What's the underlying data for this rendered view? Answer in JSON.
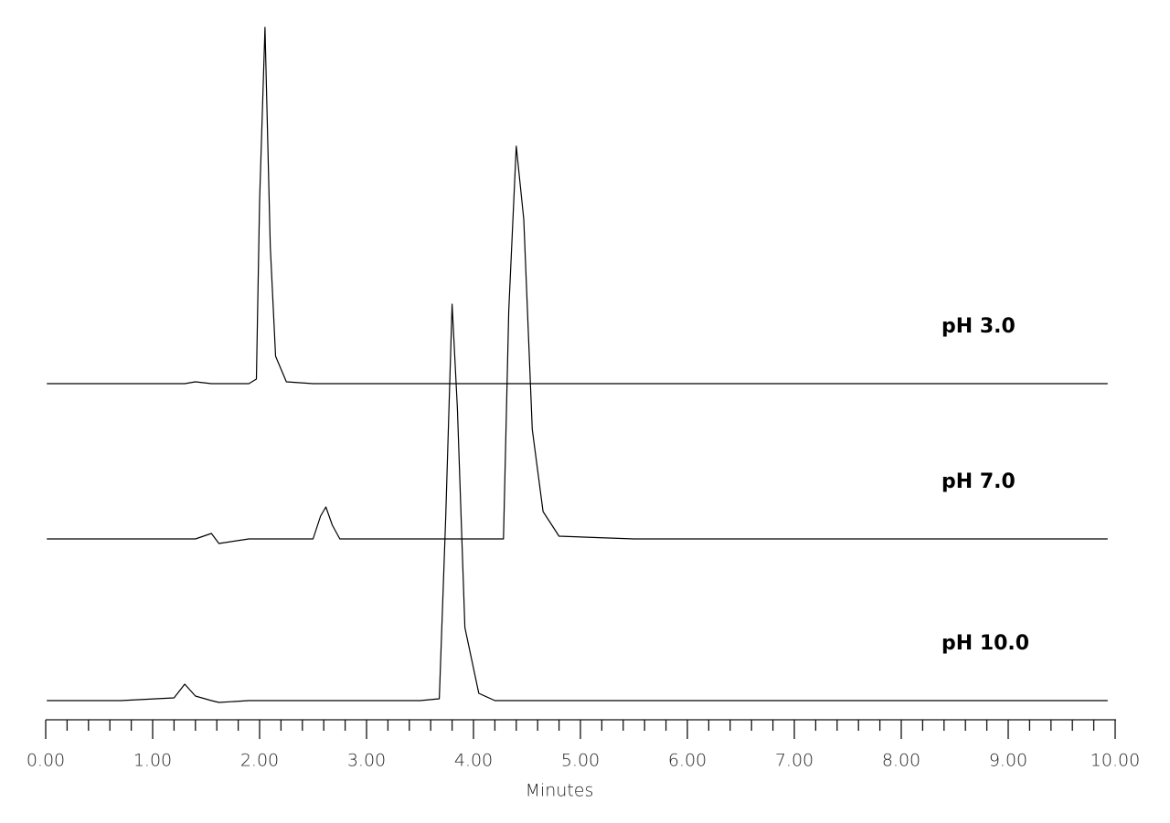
{
  "chart_data": {
    "type": "line",
    "xlabel": "Minutes",
    "x": [
      0.01,
      0.7,
      1.2,
      1.3,
      1.4,
      1.55,
      1.62,
      1.9,
      1.97,
      2.0,
      2.05,
      2.1,
      2.15,
      2.25,
      2.5,
      2.57,
      2.62,
      2.68,
      2.75,
      3.5,
      3.68,
      3.74,
      3.8,
      3.85,
      3.92,
      4.05,
      4.2,
      4.28,
      4.33,
      4.4,
      4.47,
      4.55,
      4.65,
      4.8,
      5.5,
      9.93
    ],
    "series": [
      {
        "name": "pH 3.0",
        "color": "#000000",
        "values": [
          0,
          0,
          0,
          0,
          2,
          0,
          0,
          0,
          5,
          200,
          390,
          150,
          30,
          2,
          0,
          0,
          0,
          0,
          0,
          0,
          0,
          0,
          0,
          0,
          0,
          0,
          0,
          0,
          0,
          0,
          0,
          0,
          0,
          0,
          0,
          0
        ]
      },
      {
        "name": "pH 7.0",
        "color": "#000000",
        "values": [
          0,
          0,
          0,
          0,
          0,
          6,
          -5,
          0,
          0,
          0,
          0,
          0,
          0,
          0,
          0,
          25,
          35,
          15,
          0,
          0,
          0,
          0,
          0,
          0,
          0,
          0,
          0,
          0,
          250,
          430,
          350,
          120,
          30,
          3,
          0,
          0
        ]
      },
      {
        "name": "pH 10.0",
        "color": "#000000",
        "values": [
          0,
          0,
          3,
          18,
          5,
          0,
          -2,
          0,
          0,
          0,
          0,
          0,
          0,
          0,
          0,
          0,
          0,
          0,
          0,
          0,
          2,
          200,
          434,
          320,
          80,
          8,
          0,
          0,
          0,
          0,
          0,
          0,
          0,
          0,
          0,
          0
        ]
      }
    ],
    "xlim": [
      0,
      10
    ],
    "ylim": [
      0,
      450
    ],
    "xticks": [
      {
        "value": 0,
        "label": "0.00"
      },
      {
        "value": 1,
        "label": "1.00"
      },
      {
        "value": 2,
        "label": "2.00"
      },
      {
        "value": 3,
        "label": "3.00"
      },
      {
        "value": 4,
        "label": "4.00"
      },
      {
        "value": 5,
        "label": "5.00"
      },
      {
        "value": 6,
        "label": "6.00"
      },
      {
        "value": 7,
        "label": "7.00"
      },
      {
        "value": 8,
        "label": "8.00"
      },
      {
        "value": 9,
        "label": "9.00"
      },
      {
        "value": 10,
        "label": "10.00"
      }
    ],
    "xminorticks": [
      0.2,
      0.4,
      0.6,
      0.8,
      1.2,
      1.4,
      1.6,
      1.8,
      2.2,
      2.4,
      2.6,
      2.8,
      3.2,
      3.4,
      3.6,
      3.8,
      4.2,
      4.4,
      4.6,
      4.8,
      5.2,
      5.4,
      5.6,
      5.8,
      6.2,
      6.4,
      6.6,
      6.8,
      7.2,
      7.4,
      7.6,
      7.8,
      8.2,
      8.4,
      8.6,
      8.8,
      9.2,
      9.4,
      9.6,
      9.8
    ]
  }
}
